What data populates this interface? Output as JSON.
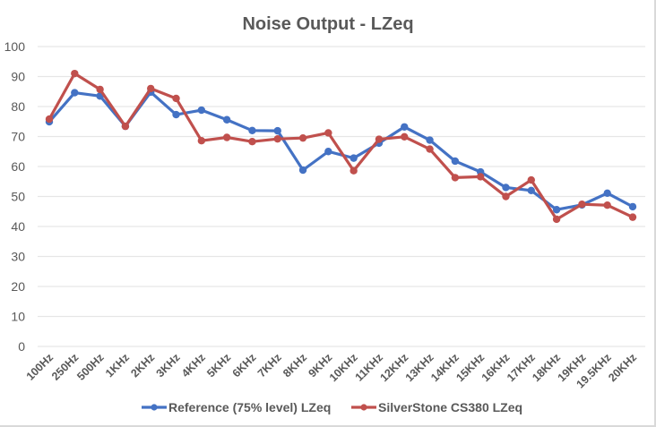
{
  "chart_data": {
    "type": "line",
    "title": "Noise Output  - LZeq",
    "xlabel": "",
    "ylabel": "",
    "ylim": [
      0,
      100
    ],
    "yticks": [
      0,
      10,
      20,
      30,
      40,
      50,
      60,
      70,
      80,
      90,
      100
    ],
    "grid": true,
    "legend": "bottom",
    "categories": [
      "100Hz",
      "250Hz",
      "500Hz",
      "1KHz",
      "2KHz",
      "3KHz",
      "4KHz",
      "5KHz",
      "6KHz",
      "7KHz",
      "8KHz",
      "9KHz",
      "10KHz",
      "11KHz",
      "12KHz",
      "13KHz",
      "14KHz",
      "15KHz",
      "16KHz",
      "17KHz",
      "18KHz",
      "19KHz",
      "19.5KHz",
      "20KHz"
    ],
    "series": [
      {
        "name": "Reference (75% level) LZeq",
        "color": "#4472C4",
        "values": [
          74.9,
          84.6,
          83.5,
          73.4,
          84.8,
          77.3,
          78.8,
          75.6,
          72.0,
          71.9,
          58.8,
          65.0,
          62.8,
          67.8,
          73.2,
          68.8,
          61.8,
          58.2,
          53.0,
          52.0,
          45.6,
          47.2,
          51.1,
          46.6
        ]
      },
      {
        "name": "SilverStone CS380 LZeq",
        "color": "#C0504D",
        "values": [
          75.8,
          91.0,
          85.7,
          73.4,
          86.0,
          82.7,
          68.6,
          69.7,
          68.3,
          69.2,
          69.5,
          71.2,
          58.6,
          69.1,
          69.9,
          65.8,
          56.3,
          56.6,
          50.0,
          55.5,
          42.4,
          47.4,
          47.1,
          43.1
        ]
      }
    ]
  }
}
